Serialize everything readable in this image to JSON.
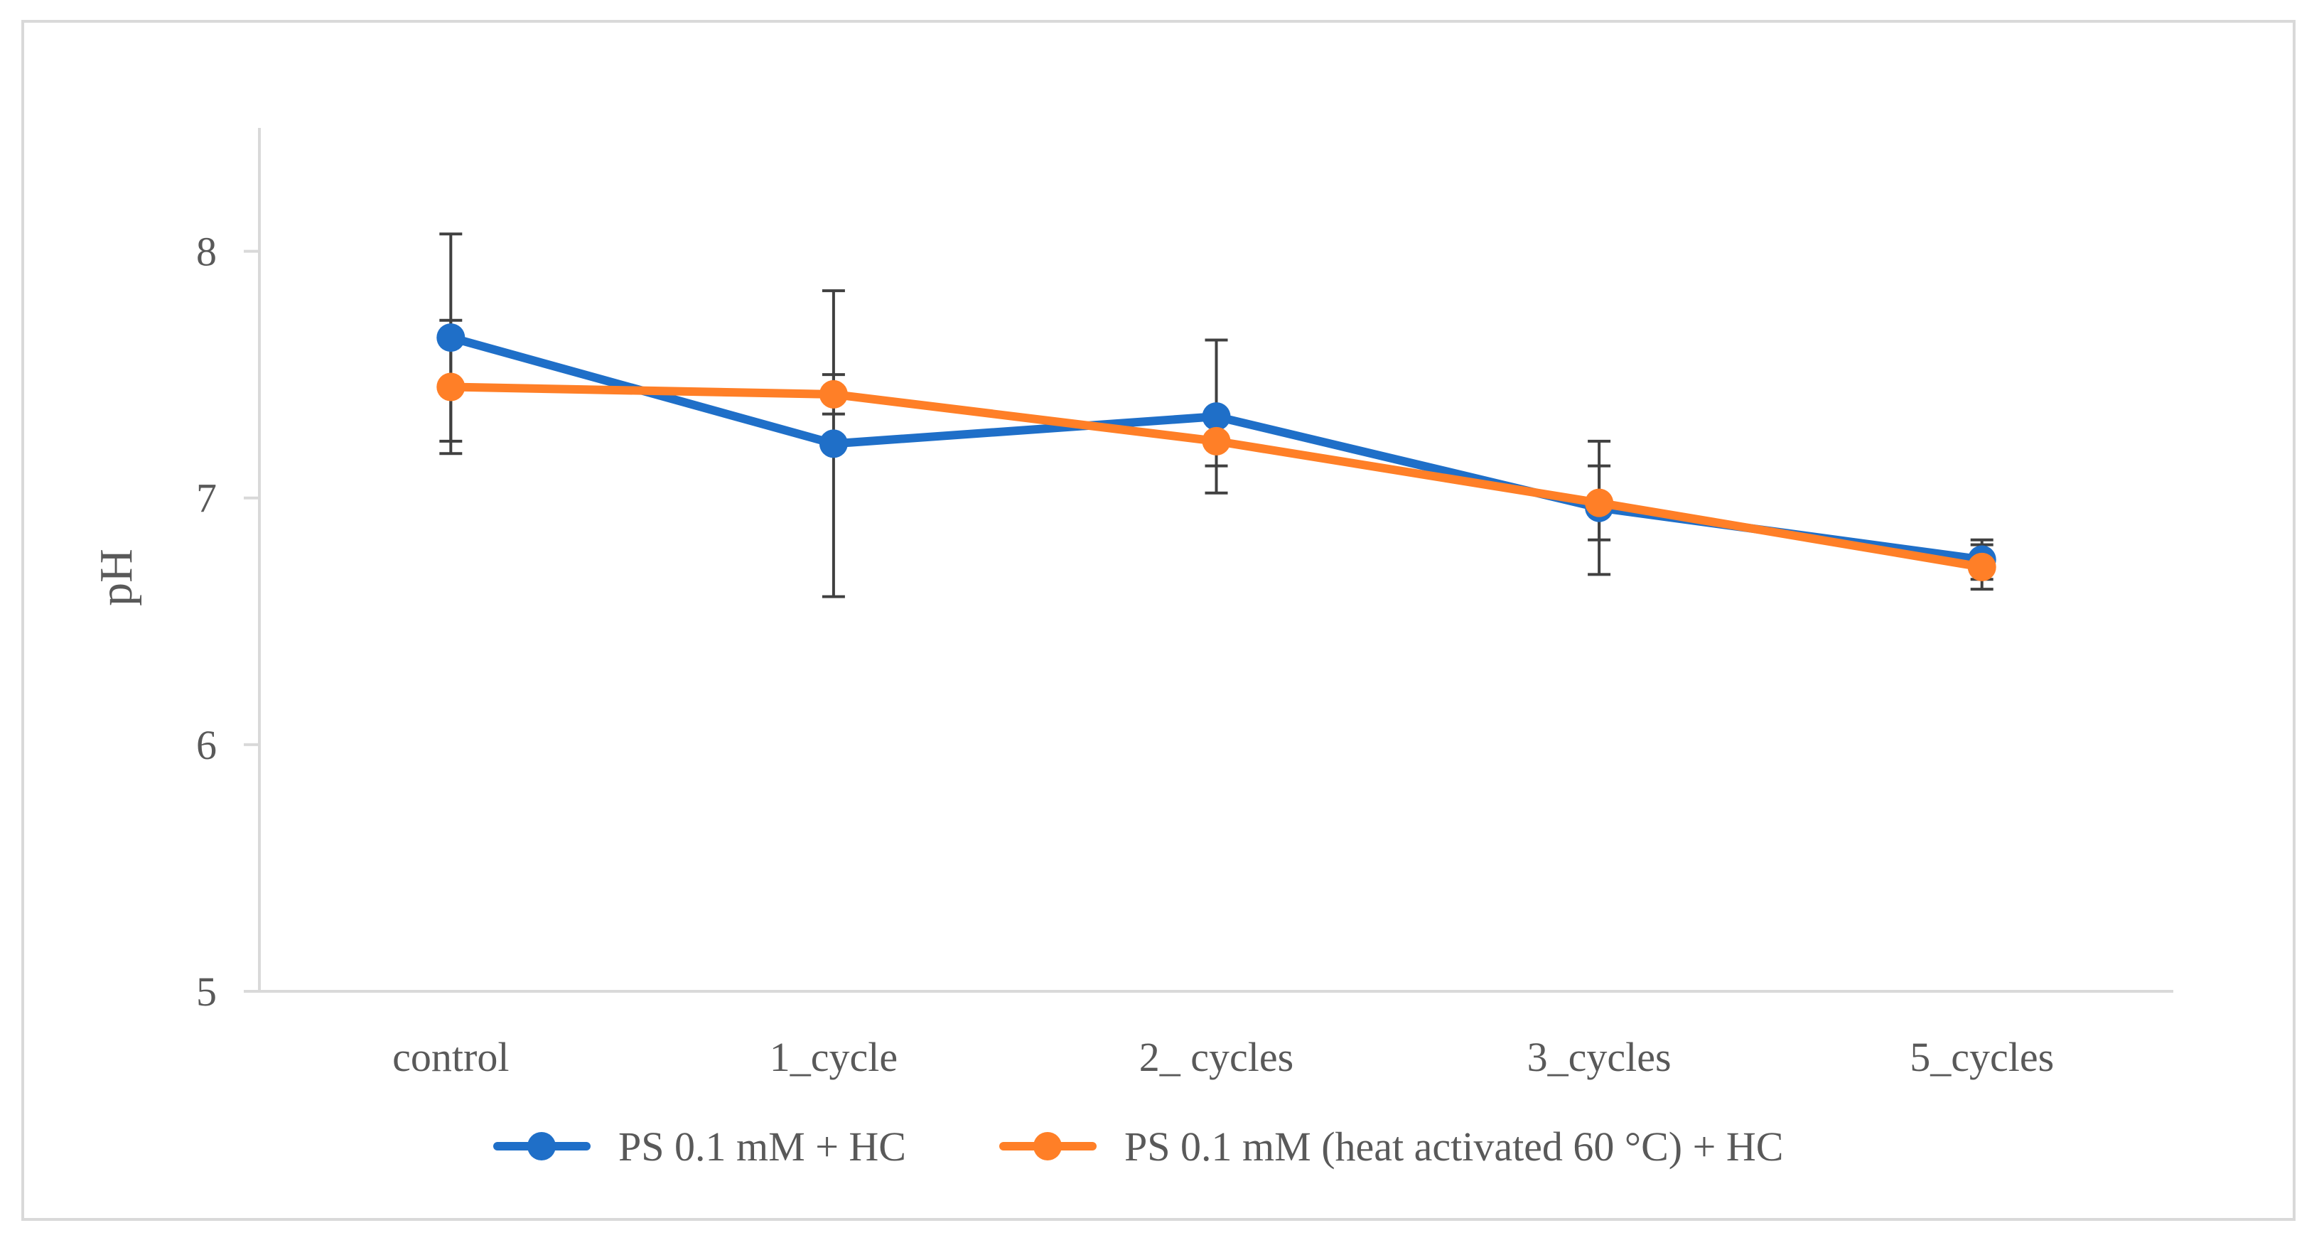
{
  "chart_data": {
    "type": "line",
    "title": "",
    "xlabel": "",
    "ylabel": "pH",
    "ylim": [
      5,
      8.5
    ],
    "yticks": [
      5,
      6,
      7,
      8
    ],
    "categories": [
      "control",
      "1_cycle",
      "2_ cycles",
      "3_cycles",
      "5_cycles"
    ],
    "grid": false,
    "legend_position": "bottom",
    "series": [
      {
        "name": "PS 0.1 mM +   HC",
        "color": "#1f6fc8",
        "values": [
          7.65,
          7.22,
          7.33,
          6.96,
          6.75
        ],
        "error": [
          0.42,
          0.62,
          0.31,
          0.27,
          0.08
        ]
      },
      {
        "name": "PS 0.1 mM (heat activated 60 °C) +   HC",
        "color": "#ff7f27",
        "values": [
          7.45,
          7.42,
          7.23,
          6.98,
          6.72
        ],
        "error": [
          0.27,
          0.08,
          0.1,
          0.15,
          0.09
        ]
      }
    ]
  }
}
